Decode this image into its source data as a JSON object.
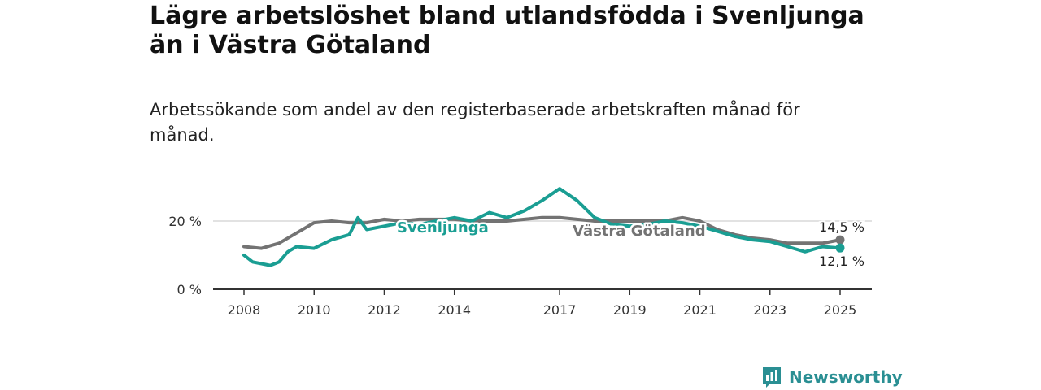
{
  "header": {
    "title": "Lägre arbetslöshet bland utlandsfödda i Svenljunga än i Västra Götaland",
    "subtitle": "Arbetssökande som andel av den registerbaserade arbetskraften månad för månad."
  },
  "brand": {
    "name": "Newsworthy",
    "icon": "newsworthy-bar-chart-logo",
    "color": "#2a8f93"
  },
  "chart_data": {
    "type": "line",
    "title": "Lägre arbetslöshet bland utlandsfödda i Svenljunga än i Västra Götaland",
    "subtitle": "Arbetssökande som andel av den registerbaserade arbetskraften månad för månad.",
    "xlabel": "",
    "ylabel": "",
    "xlim": [
      2008,
      2025.5
    ],
    "ylim": [
      0,
      30
    ],
    "x_ticks": [
      2008,
      2010,
      2012,
      2014,
      2017,
      2019,
      2021,
      2023,
      2025
    ],
    "x_tick_labels": [
      "2008",
      "2010",
      "2012",
      "2014",
      "2017",
      "2019",
      "2021",
      "2023",
      "2025"
    ],
    "y_ticks": [
      0,
      20
    ],
    "y_tick_labels": [
      "0 %",
      "20 %"
    ],
    "grid": "horizontal at 20 %",
    "legend": "inline labels",
    "series": [
      {
        "name": "Västra Götaland",
        "color": "#737373",
        "end_label": "14,5 %",
        "points": [
          [
            2008.0,
            12.5
          ],
          [
            2008.5,
            12.0
          ],
          [
            2009.0,
            13.5
          ],
          [
            2009.5,
            16.5
          ],
          [
            2010.0,
            19.5
          ],
          [
            2010.5,
            20.0
          ],
          [
            2011.0,
            19.5
          ],
          [
            2011.5,
            19.5
          ],
          [
            2012.0,
            20.5
          ],
          [
            2012.5,
            20.0
          ],
          [
            2013.0,
            20.5
          ],
          [
            2013.5,
            20.5
          ],
          [
            2014.0,
            20.5
          ],
          [
            2014.5,
            20.0
          ],
          [
            2015.0,
            20.0
          ],
          [
            2015.5,
            20.0
          ],
          [
            2016.0,
            20.5
          ],
          [
            2016.5,
            21.0
          ],
          [
            2017.0,
            21.0
          ],
          [
            2017.5,
            20.5
          ],
          [
            2018.0,
            20.0
          ],
          [
            2018.5,
            20.0
          ],
          [
            2019.0,
            20.0
          ],
          [
            2019.5,
            20.0
          ],
          [
            2020.0,
            20.0
          ],
          [
            2020.5,
            21.0
          ],
          [
            2021.0,
            20.0
          ],
          [
            2021.5,
            17.5
          ],
          [
            2022.0,
            16.0
          ],
          [
            2022.5,
            15.0
          ],
          [
            2023.0,
            14.5
          ],
          [
            2023.5,
            13.5
          ],
          [
            2024.0,
            13.5
          ],
          [
            2024.5,
            13.5
          ],
          [
            2025.0,
            14.5
          ]
        ]
      },
      {
        "name": "Svenljunga",
        "color": "#1a9e93",
        "end_label": "12,1 %",
        "points": [
          [
            2008.0,
            10.0
          ],
          [
            2008.25,
            8.0
          ],
          [
            2008.5,
            7.5
          ],
          [
            2008.75,
            7.0
          ],
          [
            2009.0,
            8.0
          ],
          [
            2009.25,
            11.0
          ],
          [
            2009.5,
            12.5
          ],
          [
            2010.0,
            12.0
          ],
          [
            2010.5,
            14.5
          ],
          [
            2011.0,
            16.0
          ],
          [
            2011.25,
            21.0
          ],
          [
            2011.5,
            17.5
          ],
          [
            2012.0,
            18.5
          ],
          [
            2012.5,
            19.5
          ],
          [
            2013.0,
            19.0
          ],
          [
            2013.5,
            20.0
          ],
          [
            2014.0,
            21.0
          ],
          [
            2014.5,
            20.0
          ],
          [
            2015.0,
            22.5
          ],
          [
            2015.5,
            21.0
          ],
          [
            2016.0,
            23.0
          ],
          [
            2016.5,
            26.0
          ],
          [
            2017.0,
            29.5
          ],
          [
            2017.5,
            26.0
          ],
          [
            2018.0,
            21.0
          ],
          [
            2018.5,
            19.0
          ],
          [
            2019.0,
            18.5
          ],
          [
            2019.5,
            19.0
          ],
          [
            2020.0,
            20.0
          ],
          [
            2020.5,
            19.5
          ],
          [
            2021.0,
            18.5
          ],
          [
            2021.5,
            17.0
          ],
          [
            2022.0,
            15.5
          ],
          [
            2022.5,
            14.5
          ],
          [
            2023.0,
            14.0
          ],
          [
            2023.5,
            12.5
          ],
          [
            2024.0,
            11.0
          ],
          [
            2024.5,
            12.5
          ],
          [
            2025.0,
            12.1
          ]
        ]
      }
    ]
  }
}
